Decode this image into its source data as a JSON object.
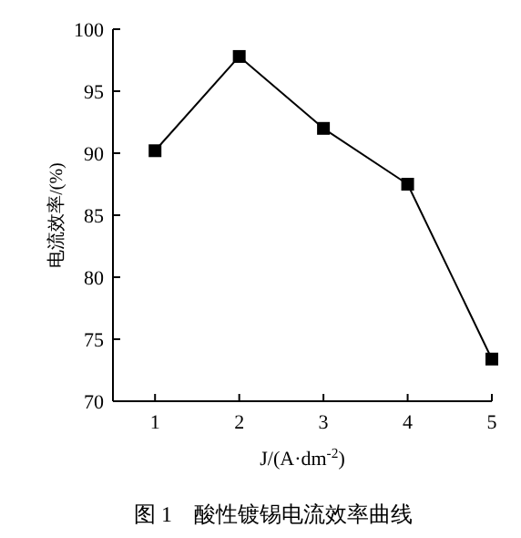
{
  "chart_data": {
    "type": "line",
    "xlabel": "J/(A·dm$^{-2}$)",
    "ylabel": "电流效率/(%)",
    "annotations": [
      "图 1　酸性镀锡电流效率曲线"
    ],
    "x": [
      1,
      2,
      3,
      4,
      5
    ],
    "series": [
      {
        "color": "#000000",
        "values": [
          90.2,
          97.8,
          92.0,
          87.5,
          73.4
        ]
      }
    ],
    "xlim": [
      0.5,
      5
    ],
    "xticks": [
      1,
      2,
      3,
      4,
      5
    ],
    "ylim": [
      70,
      100
    ],
    "yticks": [
      70,
      75,
      80,
      85,
      90,
      95,
      100
    ],
    "marker": "square",
    "line_style": "solid",
    "grid": false
  }
}
